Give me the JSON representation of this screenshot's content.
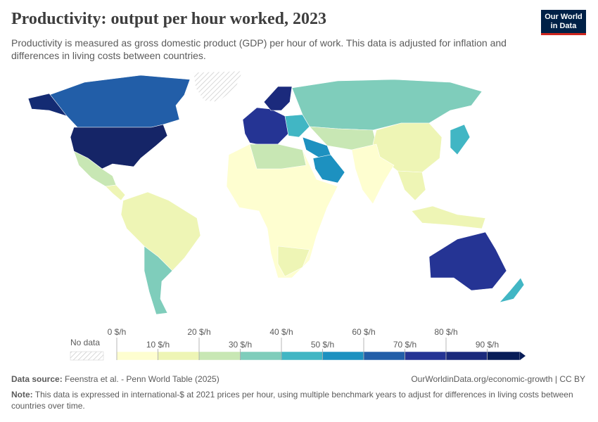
{
  "header": {
    "title": "Productivity: output per hour worked, 2023",
    "subtitle": "Productivity is measured as gross domestic product (GDP) per hour of work. This data is adjusted for inflation and differences in living costs between countries.",
    "logo": [
      "Our World",
      "in Data"
    ]
  },
  "legend": {
    "no_data": "No data",
    "ticks": [
      "0 $/h",
      "10 $/h",
      "20 $/h",
      "30 $/h",
      "40 $/h",
      "50 $/h",
      "60 $/h",
      "70 $/h",
      "80 $/h",
      "90 $/h"
    ],
    "colors": [
      "#fefed0",
      "#eef5b5",
      "#c8e7b4",
      "#7fcdbb",
      "#41b6c4",
      "#1d91c0",
      "#225ea8",
      "#253494",
      "#1b2a7c",
      "#081d58"
    ]
  },
  "footer": {
    "source_label": "Data source:",
    "source": "Feenstra et al. - Penn World Table (2025)",
    "credit": "OurWorldinData.org/economic-growth | CC BY",
    "note_label": "Note:",
    "note": "This data is expressed in international-$ at 2021 prices per hour, using multiple benchmark years to adjust for differences in living costs between countries over time."
  }
}
